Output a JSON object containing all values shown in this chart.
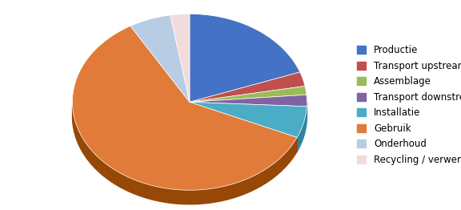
{
  "labels": [
    "Productie",
    "Transport upstream",
    "Assemblage",
    "Transport downstream",
    "Installatie",
    "Gebruik",
    "Onderhoud",
    "Recycling / verwerken"
  ],
  "values": [
    18.5,
    2.5,
    1.5,
    2.0,
    5.5,
    57.0,
    5.5,
    2.5
  ],
  "colors": [
    "#4472C4",
    "#C0504D",
    "#9BBB59",
    "#8064A2",
    "#4BACC6",
    "#E07B39",
    "#B8CCE4",
    "#F2DCDB"
  ],
  "dark_colors": [
    "#17375E",
    "#943634",
    "#76923C",
    "#60497A",
    "#31849B",
    "#974706",
    "#95B3D7",
    "#E6B8B7"
  ],
  "startangle": 90,
  "figsize": [
    5.76,
    2.62
  ],
  "dpi": 100,
  "legend_fontsize": 8.5,
  "depth": 0.12
}
